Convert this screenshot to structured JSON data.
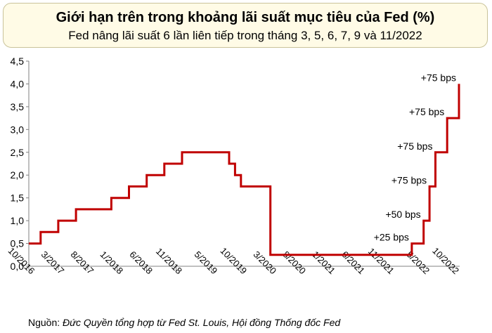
{
  "header": {
    "title": "Giới hạn trên trong khoảng lãi suất mục tiêu của Fed (%)",
    "subtitle": "Fed nâng lãi suất 6 lần liên tiếp trong tháng 3, 5, 6, 7, 9 và 11/2022"
  },
  "source": {
    "prefix": "Nguồn: ",
    "text": "Đức Quyền tổng hợp từ Fed St. Louis, Hội đồng Thống đốc Fed"
  },
  "colors": {
    "line": "#c00000",
    "axis": "#808080",
    "title_bg": "#fffbe6"
  },
  "chart_data": {
    "type": "line",
    "step": true,
    "grid": false,
    "ylim": [
      0,
      4.5
    ],
    "xlim": [
      "2016-10",
      "2022-11"
    ],
    "yticks": [
      "0,0",
      "0,5",
      "1,0",
      "1,5",
      "2,0",
      "2,5",
      "3,0",
      "3,5",
      "4,0",
      "4,5"
    ],
    "xticks": [
      "10/2016",
      "3/2017",
      "8/2017",
      "1/2018",
      "6/2018",
      "11/2018",
      "5/2019",
      "10/2019",
      "3/2020",
      "8/2020",
      "1/2021",
      "6/2021",
      "11/2021",
      "5/2022",
      "10/2022"
    ],
    "series": [
      {
        "points": [
          [
            "2016-10",
            0.5
          ],
          [
            "2016-12",
            0.75
          ],
          [
            "2017-03",
            1.0
          ],
          [
            "2017-06",
            1.25
          ],
          [
            "2017-12",
            1.5
          ],
          [
            "2018-03",
            1.75
          ],
          [
            "2018-06",
            2.0
          ],
          [
            "2018-09",
            2.25
          ],
          [
            "2018-12",
            2.5
          ],
          [
            "2019-08",
            2.25
          ],
          [
            "2019-09",
            2.0
          ],
          [
            "2019-10",
            1.75
          ],
          [
            "2020-03",
            1.25
          ],
          [
            "2020-03",
            0.25
          ],
          [
            "2022-03",
            0.5
          ],
          [
            "2022-05",
            1.0
          ],
          [
            "2022-06",
            1.75
          ],
          [
            "2022-07",
            2.5
          ],
          [
            "2022-09",
            3.25
          ],
          [
            "2022-11",
            4.0
          ]
        ]
      }
    ],
    "annotations": [
      {
        "text": "+25 bps",
        "x": "2022-03",
        "y": 0.5
      },
      {
        "text": "+50 bps",
        "x": "2022-05",
        "y": 1.0
      },
      {
        "text": "+75 bps",
        "x": "2022-06",
        "y": 1.75
      },
      {
        "text": "+75 bps",
        "x": "2022-07",
        "y": 2.5
      },
      {
        "text": "+75 bps",
        "x": "2022-09",
        "y": 3.25
      },
      {
        "text": "+75 bps",
        "x": "2022-11",
        "y": 4.0
      }
    ]
  }
}
